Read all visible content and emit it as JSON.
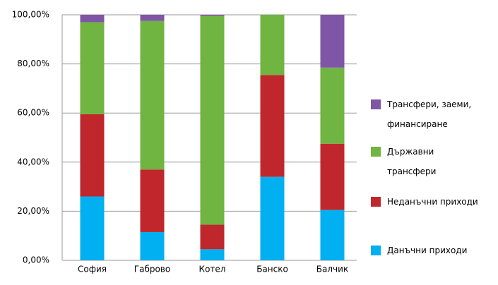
{
  "chart_data": {
    "type": "stacked-bar",
    "categories": [
      "София",
      "Габрово",
      "Котел",
      "Банско",
      "Балчик"
    ],
    "series": [
      {
        "name": "Данъчни приходи",
        "color": "#00b0f0",
        "values": [
          26,
          11.5,
          4.5,
          34,
          20.5
        ]
      },
      {
        "name": "Неданъчни приходи",
        "color": "#c0272d",
        "values": [
          33.5,
          25.5,
          10,
          41.5,
          27
        ]
      },
      {
        "name": "Държавни трансфери",
        "color": "#70b442",
        "values": [
          37.5,
          60.5,
          85,
          24.5,
          31
        ]
      },
      {
        "name": "Трансфери, заеми, финансиране",
        "color": "#7f56a6",
        "values": [
          3,
          2.5,
          0.5,
          0,
          21.5
        ]
      }
    ],
    "ylim": [
      0,
      100
    ],
    "yticks": [
      {
        "value": 0,
        "label": "0,00%"
      },
      {
        "value": 20,
        "label": "20,00%"
      },
      {
        "value": 40,
        "label": "40,00%"
      },
      {
        "value": 60,
        "label": "60,00%"
      },
      {
        "value": 80,
        "label": "80,00%"
      },
      {
        "value": 100,
        "label": "100,00%"
      }
    ],
    "grid": true,
    "legend": "right"
  }
}
